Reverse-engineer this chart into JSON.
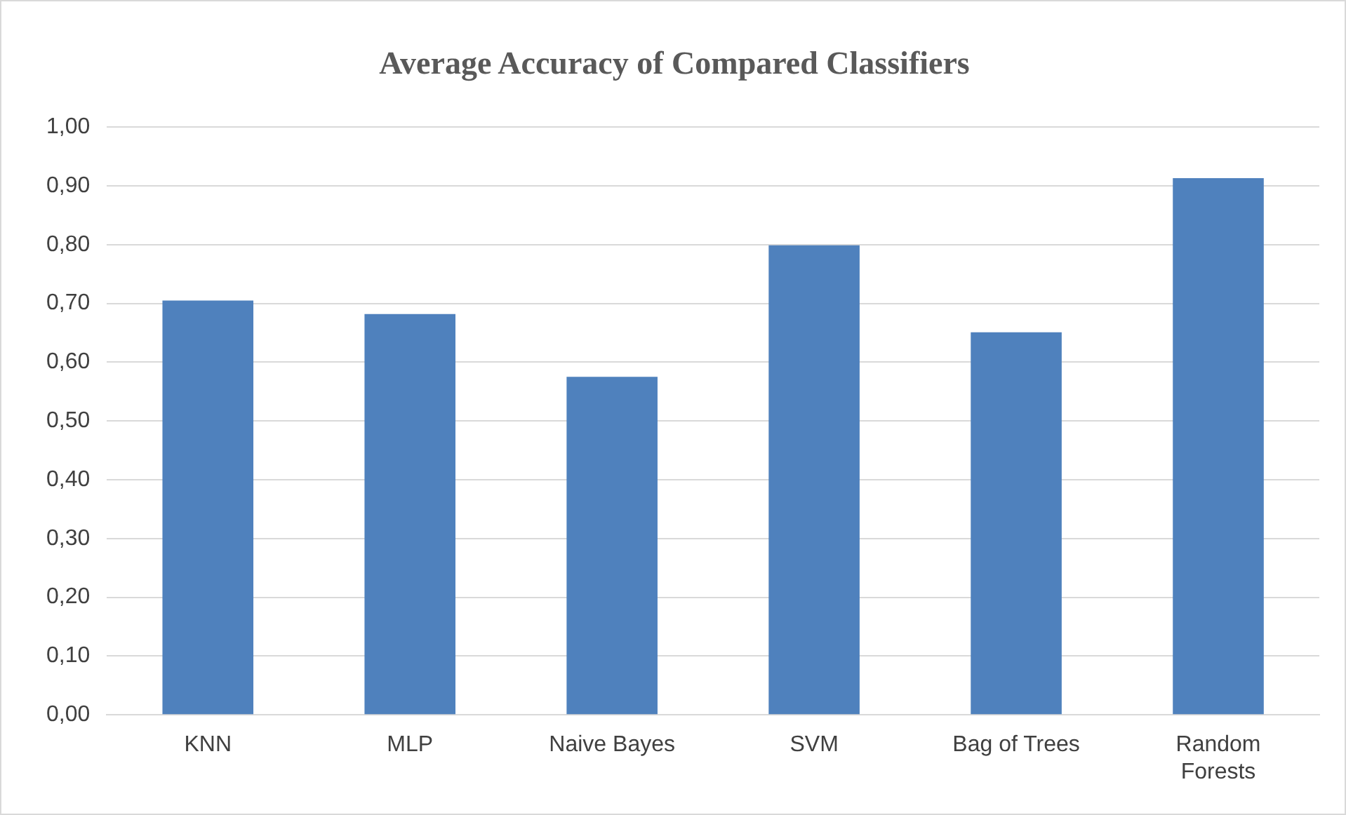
{
  "chart_data": {
    "type": "bar",
    "title": "Average Accuracy of Compared Classifiers",
    "categories": [
      "KNN",
      "MLP",
      "Naive Bayes",
      "SVM",
      "Bag of Trees",
      "Random Forests"
    ],
    "values": [
      0.705,
      0.682,
      0.575,
      0.799,
      0.651,
      0.913
    ],
    "color": "#4f81bd",
    "ylim": [
      0,
      1
    ],
    "yticks": [
      {
        "value": 0,
        "label": "0,00"
      },
      {
        "value": 0.1,
        "label": "0,10"
      },
      {
        "value": 0.2,
        "label": "0,20"
      },
      {
        "value": 0.3,
        "label": "0,30"
      },
      {
        "value": 0.4,
        "label": "0,40"
      },
      {
        "value": 0.5,
        "label": "0,50"
      },
      {
        "value": 0.6,
        "label": "0,60"
      },
      {
        "value": 0.7,
        "label": "0,70"
      },
      {
        "value": 0.8,
        "label": "0,80"
      },
      {
        "value": 0.9,
        "label": "0,90"
      },
      {
        "value": 1,
        "label": "1,00"
      }
    ],
    "grid": "y",
    "legend": false
  }
}
